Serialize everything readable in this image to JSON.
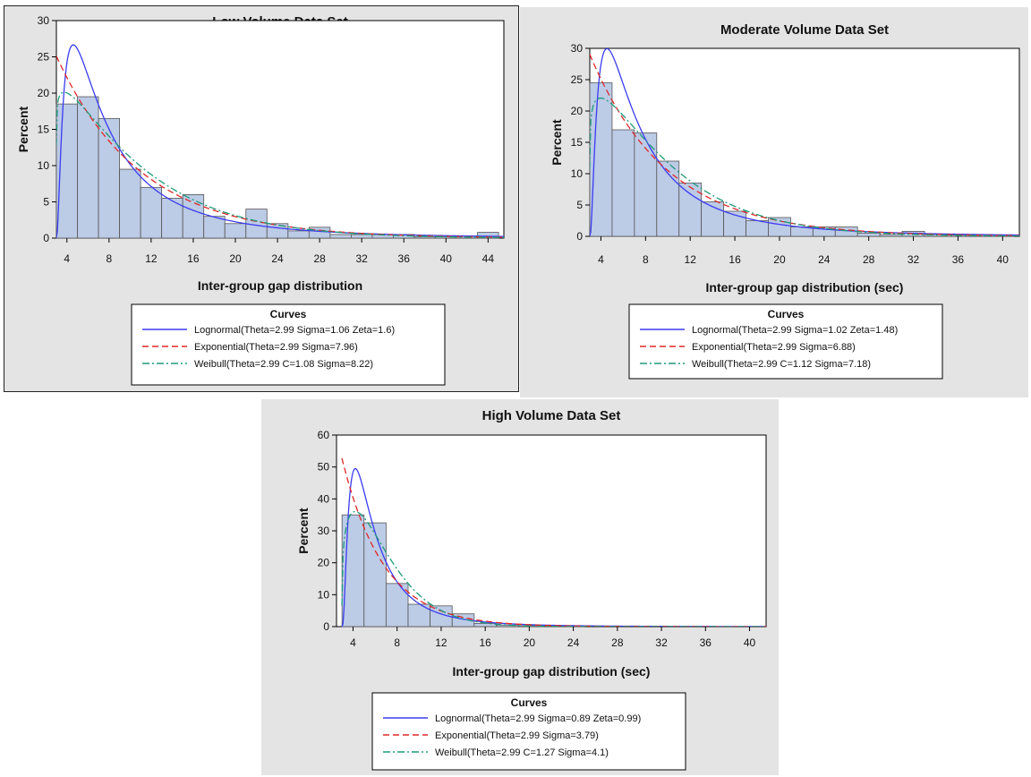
{
  "colors": {
    "panel_bg": "#e4e4e4",
    "plot_bg": "#ffffff",
    "bar_fill": "#bccbe6",
    "bar_stroke": "#555555",
    "lognormal": "#3b3bf0",
    "exponential": "#e02828",
    "weibull": "#1f9a7a"
  },
  "chart_data": [
    {
      "id": "low",
      "type": "bar",
      "title": "Low Volume Data Set",
      "xlabel": "Inter-group gap distribution",
      "ylabel": "Percent",
      "xlim": [
        3,
        45.5
      ],
      "ylim": [
        0,
        30
      ],
      "xticks": [
        4,
        8,
        12,
        16,
        20,
        24,
        28,
        32,
        36,
        40,
        44
      ],
      "yticks": [
        0,
        5,
        10,
        15,
        20,
        25,
        30
      ],
      "bin_width": 2,
      "bins": [
        {
          "x0": 3,
          "x1": 5,
          "value": 18.5
        },
        {
          "x0": 5,
          "x1": 7,
          "value": 19.5
        },
        {
          "x0": 7,
          "x1": 9,
          "value": 16.5
        },
        {
          "x0": 9,
          "x1": 11,
          "value": 9.5
        },
        {
          "x0": 11,
          "x1": 13,
          "value": 7.0
        },
        {
          "x0": 13,
          "x1": 15,
          "value": 5.5
        },
        {
          "x0": 15,
          "x1": 17,
          "value": 6.0
        },
        {
          "x0": 17,
          "x1": 19,
          "value": 3.0
        },
        {
          "x0": 19,
          "x1": 21,
          "value": 2.0
        },
        {
          "x0": 21,
          "x1": 23,
          "value": 4.0
        },
        {
          "x0": 23,
          "x1": 25,
          "value": 2.0
        },
        {
          "x0": 25,
          "x1": 27,
          "value": 1.0
        },
        {
          "x0": 27,
          "x1": 29,
          "value": 1.5
        },
        {
          "x0": 29,
          "x1": 31,
          "value": 0.5
        },
        {
          "x0": 31,
          "x1": 33,
          "value": 0.5
        },
        {
          "x0": 33,
          "x1": 35,
          "value": 0.5
        },
        {
          "x0": 35,
          "x1": 37,
          "value": 0.5
        },
        {
          "x0": 37,
          "x1": 39,
          "value": 0.2
        },
        {
          "x0": 39,
          "x1": 41,
          "value": 0.2
        },
        {
          "x0": 41,
          "x1": 43,
          "value": 0.3
        },
        {
          "x0": 43,
          "x1": 45,
          "value": 0.8
        }
      ],
      "curves": {
        "lognormal": {
          "theta": 2.99,
          "sigma": 1.06,
          "zeta": 1.6
        },
        "exponential": {
          "theta": 2.99,
          "sigma": 7.96
        },
        "weibull": {
          "theta": 2.99,
          "c": 1.08,
          "sigma": 8.22
        }
      },
      "legend": {
        "title": "Curves",
        "entries": [
          "Lognormal(Theta=2.99 Sigma=1.06 Zeta=1.6)",
          "Exponential(Theta=2.99 Sigma=7.96)",
          "Weibull(Theta=2.99 C=1.08 Sigma=8.22)"
        ]
      }
    },
    {
      "id": "moderate",
      "type": "bar",
      "title": "Moderate Volume Data Set",
      "xlabel": "Inter-group gap distribution (sec)",
      "ylabel": "Percent",
      "xlim": [
        3,
        41.5
      ],
      "ylim": [
        0,
        30
      ],
      "xticks": [
        4,
        8,
        12,
        16,
        20,
        24,
        28,
        32,
        36,
        40
      ],
      "yticks": [
        0,
        5,
        10,
        15,
        20,
        25,
        30
      ],
      "bin_width": 2,
      "bins": [
        {
          "x0": 3,
          "x1": 5,
          "value": 24.5
        },
        {
          "x0": 5,
          "x1": 7,
          "value": 17.0
        },
        {
          "x0": 7,
          "x1": 9,
          "value": 16.5
        },
        {
          "x0": 9,
          "x1": 11,
          "value": 12.0
        },
        {
          "x0": 11,
          "x1": 13,
          "value": 8.5
        },
        {
          "x0": 13,
          "x1": 15,
          "value": 5.5
        },
        {
          "x0": 15,
          "x1": 17,
          "value": 4.0
        },
        {
          "x0": 17,
          "x1": 19,
          "value": 2.5
        },
        {
          "x0": 19,
          "x1": 21,
          "value": 3.0
        },
        {
          "x0": 21,
          "x1": 23,
          "value": 1.5
        },
        {
          "x0": 23,
          "x1": 25,
          "value": 1.5
        },
        {
          "x0": 25,
          "x1": 27,
          "value": 1.5
        },
        {
          "x0": 27,
          "x1": 29,
          "value": 0.5
        },
        {
          "x0": 29,
          "x1": 31,
          "value": 0.3
        },
        {
          "x0": 31,
          "x1": 33,
          "value": 0.8
        },
        {
          "x0": 33,
          "x1": 35,
          "value": 0.3
        },
        {
          "x0": 35,
          "x1": 37,
          "value": 0.2
        },
        {
          "x0": 37,
          "x1": 39,
          "value": 0.3
        },
        {
          "x0": 39,
          "x1": 41,
          "value": 0.2
        }
      ],
      "curves": {
        "lognormal": {
          "theta": 2.99,
          "sigma": 1.02,
          "zeta": 1.48
        },
        "exponential": {
          "theta": 2.99,
          "sigma": 6.88
        },
        "weibull": {
          "theta": 2.99,
          "c": 1.12,
          "sigma": 7.18
        }
      },
      "legend": {
        "title": "Curves",
        "entries": [
          "Lognormal(Theta=2.99 Sigma=1.02 Zeta=1.48)",
          "Exponential(Theta=2.99 Sigma=6.88)",
          "Weibull(Theta=2.99 C=1.12 Sigma=7.18)"
        ]
      }
    },
    {
      "id": "high",
      "type": "bar",
      "title": "High Volume Data Set",
      "xlabel": "Inter-group gap distribution (sec)",
      "ylabel": "Percent",
      "xlim": [
        2.5,
        41.5
      ],
      "ylim": [
        0,
        60
      ],
      "xticks": [
        4,
        8,
        12,
        16,
        20,
        24,
        28,
        32,
        36,
        40
      ],
      "yticks": [
        0,
        10,
        20,
        30,
        40,
        50,
        60
      ],
      "bin_width": 2,
      "bins": [
        {
          "x0": 3,
          "x1": 5,
          "value": 35.0
        },
        {
          "x0": 5,
          "x1": 7,
          "value": 32.5
        },
        {
          "x0": 7,
          "x1": 9,
          "value": 13.5
        },
        {
          "x0": 9,
          "x1": 11,
          "value": 7.0
        },
        {
          "x0": 11,
          "x1": 13,
          "value": 6.5
        },
        {
          "x0": 13,
          "x1": 15,
          "value": 4.0
        },
        {
          "x0": 15,
          "x1": 17,
          "value": 1.0
        },
        {
          "x0": 17,
          "x1": 19,
          "value": 0.5
        },
        {
          "x0": 19,
          "x1": 21,
          "value": 0.3
        },
        {
          "x0": 21,
          "x1": 23,
          "value": 0.2
        },
        {
          "x0": 23,
          "x1": 25,
          "value": 0.3
        }
      ],
      "curves": {
        "lognormal": {
          "theta": 2.99,
          "sigma": 0.89,
          "zeta": 0.99
        },
        "exponential": {
          "theta": 2.99,
          "sigma": 3.79
        },
        "weibull": {
          "theta": 2.99,
          "c": 1.27,
          "sigma": 4.1
        }
      },
      "legend": {
        "title": "Curves",
        "entries": [
          "Lognormal(Theta=2.99 Sigma=0.89 Zeta=0.99)",
          "Exponential(Theta=2.99 Sigma=3.79)",
          "Weibull(Theta=2.99 C=1.27 Sigma=4.1)"
        ]
      }
    }
  ]
}
